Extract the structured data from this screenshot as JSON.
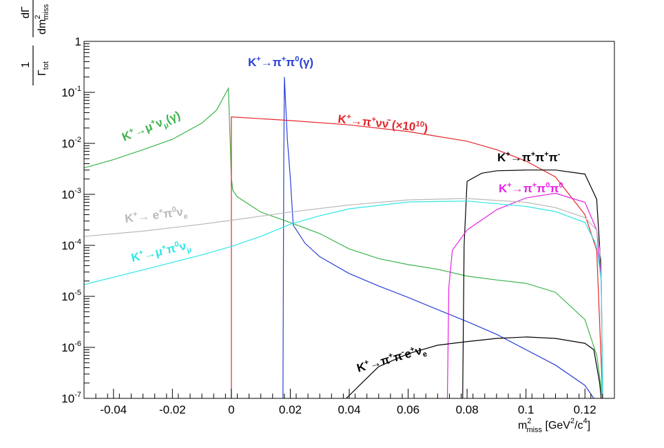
{
  "chart_data": {
    "type": "line",
    "yscale": "log",
    "xlim": [
      -0.05,
      0.13
    ],
    "ylim": [
      1e-07,
      1
    ],
    "grid": false,
    "x_tick_labels": [
      "-0.04",
      "-0.02",
      "0",
      "0.02",
      "0.04",
      "0.06",
      "0.08",
      "0.1",
      "0.12"
    ],
    "x_tick_values": [
      -0.04,
      -0.02,
      0,
      0.02,
      0.04,
      0.06,
      0.08,
      0.1,
      0.12
    ],
    "y_tick_values": [
      1e-07,
      1e-06,
      1e-05,
      0.0001,
      0.001,
      0.01,
      0.1,
      1
    ],
    "y_tick_labels": [
      {
        "base": "10",
        "exp": "-7"
      },
      {
        "base": "10",
        "exp": "-6"
      },
      {
        "base": "10",
        "exp": "-5"
      },
      {
        "base": "10",
        "exp": "-4"
      },
      {
        "base": "10",
        "exp": "-3"
      },
      {
        "base": "10",
        "exp": "-2"
      },
      {
        "base": "10",
        "exp": "-1"
      },
      {
        "base": "1",
        "exp": ""
      }
    ],
    "xlabel": {
      "m": "m",
      "sup": "2",
      "sub": "miss",
      "unit_open": " [GeV",
      "unit_sup1": "2",
      "unit_mid": "/c",
      "unit_sup2": "4",
      "unit_close": "]"
    },
    "ylabel": {
      "one": "1",
      "gamma": "Γ",
      "tot": "tot",
      "dG": "dΓ",
      "dm": "dm",
      "dm_sup": "2",
      "dm_sub": "miss"
    },
    "series": [
      {
        "color": "#3cb44b",
        "points": [
          [
            -0.05,
            0.0033
          ],
          [
            -0.04,
            0.0048
          ],
          [
            -0.03,
            0.0075
          ],
          [
            -0.02,
            0.012
          ],
          [
            -0.01,
            0.025
          ],
          [
            -0.005,
            0.045
          ],
          [
            -0.001,
            0.12
          ],
          [
            0.0,
            0.0021
          ],
          [
            0.0005,
            0.0012
          ],
          [
            0.002,
            0.0009
          ],
          [
            0.01,
            0.00045
          ],
          [
            0.02,
            0.00028
          ],
          [
            0.03,
            0.00017
          ],
          [
            0.04,
            8.5e-05
          ],
          [
            0.05,
            5.5e-05
          ],
          [
            0.06,
            4.2e-05
          ],
          [
            0.07,
            3.4e-05
          ],
          [
            0.08,
            2.5e-05
          ],
          [
            0.09,
            2.1e-05
          ],
          [
            0.1,
            1.8e-05
          ],
          [
            0.11,
            1.2e-05
          ],
          [
            0.12,
            3.5e-06
          ],
          [
            0.124,
            7e-07
          ],
          [
            0.126,
            1e-07
          ]
        ],
        "label": [
          {
            "t": "K"
          },
          {
            "t": "+",
            "sup": true
          },
          {
            "t": "→μ"
          },
          {
            "t": "+",
            "sup": true
          },
          {
            "t": "ν"
          },
          {
            "t": "μ",
            "sub": true
          },
          {
            "t": "(γ)"
          }
        ]
      },
      {
        "color": "#2a3fd6",
        "points": [
          [
            0.0175,
            1e-07
          ],
          [
            0.0178,
            0.005
          ],
          [
            0.018,
            0.2
          ],
          [
            0.0185,
            0.05
          ],
          [
            0.019,
            0.012
          ],
          [
            0.02,
            0.0022
          ],
          [
            0.021,
            0.00025
          ],
          [
            0.025,
            0.00011
          ],
          [
            0.03,
            6e-05
          ],
          [
            0.04,
            2.8e-05
          ],
          [
            0.05,
            1.6e-05
          ],
          [
            0.06,
            9.5e-06
          ],
          [
            0.07,
            5.5e-06
          ],
          [
            0.08,
            3.2e-06
          ],
          [
            0.09,
            1.8e-06
          ],
          [
            0.1,
            9e-07
          ],
          [
            0.11,
            4.5e-07
          ],
          [
            0.12,
            1.8e-07
          ],
          [
            0.123,
            1e-07
          ]
        ],
        "label": [
          {
            "t": "K"
          },
          {
            "t": "+",
            "sup": true
          },
          {
            "t": "→π"
          },
          {
            "t": "+",
            "sup": true
          },
          {
            "t": "π"
          },
          {
            "t": "0",
            "sup": true
          },
          {
            "t": "(γ)"
          }
        ]
      },
      {
        "color": "#e3262b",
        "points": [
          [
            0.0,
            1e-07
          ],
          [
            0.0,
            0.033
          ],
          [
            0.02,
            0.028
          ],
          [
            0.04,
            0.023
          ],
          [
            0.06,
            0.017
          ],
          [
            0.08,
            0.011
          ],
          [
            0.09,
            0.0075
          ],
          [
            0.1,
            0.0045
          ],
          [
            0.11,
            0.0022
          ],
          [
            0.12,
            0.0004
          ],
          [
            0.124,
            8e-05
          ],
          [
            0.125,
            3e-06
          ],
          [
            0.126,
            1e-07
          ]
        ],
        "label": [
          {
            "t": "K"
          },
          {
            "t": "+",
            "sup": true
          },
          {
            "t": "→π"
          },
          {
            "t": "+",
            "sup": true
          },
          {
            "t": "νν̄ (×10"
          },
          {
            "t": "10",
            "sup": true
          },
          {
            "t": ")"
          }
        ]
      },
      {
        "color": "#000000",
        "points": [
          [
            0.0785,
            1e-07
          ],
          [
            0.079,
            0.0001
          ],
          [
            0.08,
            0.0018
          ],
          [
            0.085,
            0.0026
          ],
          [
            0.09,
            0.0029
          ],
          [
            0.1,
            0.003
          ],
          [
            0.11,
            0.003
          ],
          [
            0.12,
            0.0025
          ],
          [
            0.124,
            0.0008
          ],
          [
            0.1255,
            3e-05
          ],
          [
            0.126,
            1e-07
          ]
        ],
        "label": [
          {
            "t": "K"
          },
          {
            "t": "+",
            "sup": true
          },
          {
            "t": "→π"
          },
          {
            "t": "+",
            "sup": true
          },
          {
            "t": "π"
          },
          {
            "t": "+",
            "sup": true
          },
          {
            "t": "π"
          },
          {
            "t": "-",
            "sup": true
          }
        ]
      },
      {
        "color": "#e81fe4",
        "points": [
          [
            0.0733,
            1e-07
          ],
          [
            0.0738,
            1.5e-05
          ],
          [
            0.075,
            8e-05
          ],
          [
            0.08,
            0.0002
          ],
          [
            0.09,
            0.0005
          ],
          [
            0.1,
            0.00085
          ],
          [
            0.11,
            0.00105
          ],
          [
            0.12,
            0.0007
          ],
          [
            0.124,
            0.0002
          ],
          [
            0.1255,
            2e-05
          ],
          [
            0.126,
            1e-07
          ]
        ],
        "label": [
          {
            "t": "K"
          },
          {
            "t": "+",
            "sup": true
          },
          {
            "t": "→π"
          },
          {
            "t": "+",
            "sup": true
          },
          {
            "t": "π"
          },
          {
            "t": "0",
            "sup": true
          },
          {
            "t": "π"
          },
          {
            "t": "0",
            "sup": true
          }
        ]
      },
      {
        "color": "#b8b8b8",
        "points": [
          [
            -0.05,
            0.00015
          ],
          [
            -0.03,
            0.00019
          ],
          [
            -0.01,
            0.00026
          ],
          [
            0.0,
            0.00031
          ],
          [
            0.02,
            0.00045
          ],
          [
            0.04,
            0.00062
          ],
          [
            0.06,
            0.00078
          ],
          [
            0.08,
            0.00083
          ],
          [
            0.1,
            0.0007
          ],
          [
            0.11,
            0.00055
          ],
          [
            0.12,
            0.00035
          ],
          [
            0.124,
            0.0002
          ],
          [
            0.1255,
            5e-05
          ],
          [
            0.126,
            1e-07
          ]
        ],
        "label": [
          {
            "t": "K"
          },
          {
            "t": "+",
            "sup": true
          },
          {
            "t": "→ e"
          },
          {
            "t": "+",
            "sup": true
          },
          {
            "t": "π"
          },
          {
            "t": "0",
            "sup": true
          },
          {
            "t": "ν"
          },
          {
            "t": "e",
            "sub": true
          }
        ]
      },
      {
        "color": "#2ee6e6",
        "points": [
          [
            -0.05,
            1.7e-05
          ],
          [
            -0.03,
            3.3e-05
          ],
          [
            -0.01,
            6.5e-05
          ],
          [
            0.0,
            9.5e-05
          ],
          [
            0.01,
            0.00015
          ],
          [
            0.02,
            0.00026
          ],
          [
            0.03,
            0.00038
          ],
          [
            0.04,
            0.00052
          ],
          [
            0.06,
            0.00071
          ],
          [
            0.08,
            0.00074
          ],
          [
            0.1,
            0.00058
          ],
          [
            0.11,
            0.00046
          ],
          [
            0.12,
            0.00028
          ],
          [
            0.124,
            0.0001
          ],
          [
            0.1255,
            2e-05
          ],
          [
            0.126,
            1e-07
          ]
        ],
        "label": [
          {
            "t": "K"
          },
          {
            "t": "+",
            "sup": true
          },
          {
            "t": "→μ"
          },
          {
            "t": "+",
            "sup": true
          },
          {
            "t": "π"
          },
          {
            "t": "0",
            "sup": true
          },
          {
            "t": "ν"
          },
          {
            "t": "μ",
            "sub": true
          }
        ]
      },
      {
        "color": "#000000",
        "points": [
          [
            0.039,
            1e-07
          ],
          [
            0.045,
            2.2e-07
          ],
          [
            0.05,
            4.2e-07
          ],
          [
            0.06,
            7.5e-07
          ],
          [
            0.07,
            1.1e-06
          ],
          [
            0.08,
            1.3e-06
          ],
          [
            0.09,
            1.5e-06
          ],
          [
            0.1,
            1.6e-06
          ],
          [
            0.11,
            1.5e-06
          ],
          [
            0.12,
            1.2e-06
          ],
          [
            0.123,
            9e-07
          ],
          [
            0.125,
            2e-07
          ],
          [
            0.1255,
            1e-07
          ]
        ],
        "label": [
          {
            "t": "K"
          },
          {
            "t": "+",
            "sup": true
          },
          {
            "t": "→π"
          },
          {
            "t": "+",
            "sup": true
          },
          {
            "t": "π"
          },
          {
            "t": "-",
            "sup": true
          },
          {
            "t": "e"
          },
          {
            "t": "+",
            "sup": true
          },
          {
            "t": "ν"
          },
          {
            "t": "e",
            "sub": true
          }
        ]
      }
    ]
  }
}
